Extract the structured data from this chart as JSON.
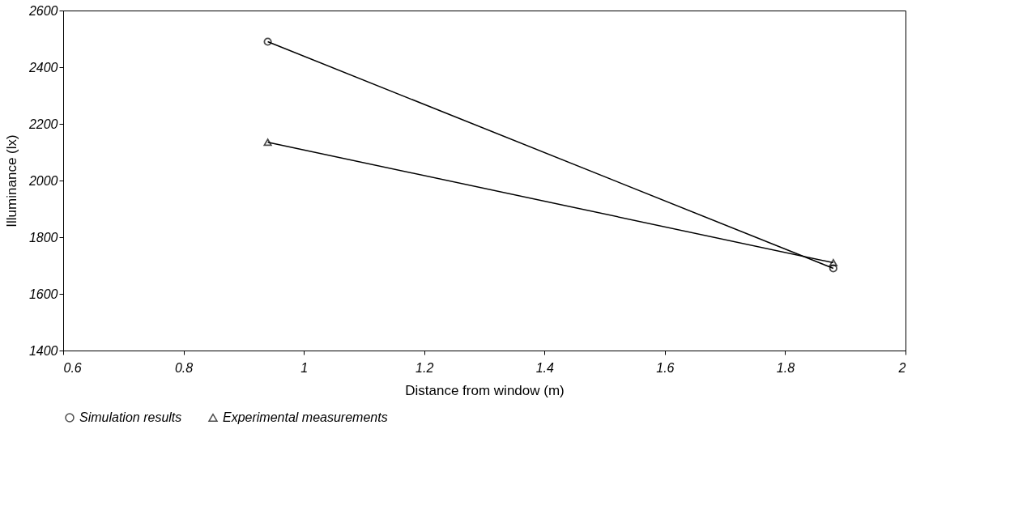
{
  "chart_data": {
    "type": "line",
    "xlabel": "Distance from window (m)",
    "ylabel": "Illuminance (lx)",
    "x": [
      0.94,
      1.88
    ],
    "xlim": [
      0.6,
      2
    ],
    "xticks": [
      0.6,
      0.8,
      1,
      1.2,
      1.4,
      1.6,
      1.8,
      2
    ],
    "ylim": [
      1400,
      2600
    ],
    "yticks": [
      1400,
      1600,
      1800,
      2000,
      2200,
      2400,
      2600
    ],
    "grid": false,
    "legend": "bottom",
    "line_style": "solid",
    "series": [
      {
        "name": "Simulation results",
        "color": "#000000",
        "marker": "circle",
        "values": [
          2490,
          1690
        ]
      },
      {
        "name": "Experimental measurements",
        "color": "#000000",
        "marker": "triangle",
        "values": [
          2135,
          1710
        ]
      }
    ]
  }
}
